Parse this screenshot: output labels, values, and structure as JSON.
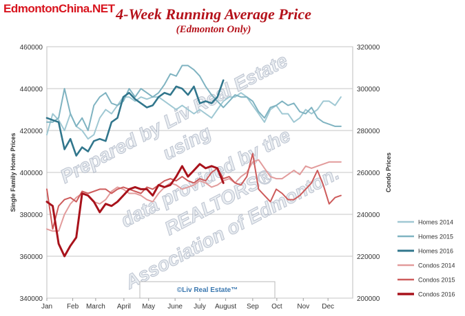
{
  "header": {
    "brand": "EdmontonChina.NET",
    "title": "4-Week Running Average Price",
    "subtitle": "(Edmonton Only)"
  },
  "chart_data": {
    "type": "line",
    "title": "4-Week Running Average Price",
    "subtitle": "(Edmonton Only)",
    "ylabel": "Single Family Home Prices",
    "y2label": "Condo Prices",
    "ylim": [
      340000,
      460000
    ],
    "y2lim": [
      200000,
      320000
    ],
    "yticks": [
      "340000",
      "360000",
      "380000",
      "400000",
      "420000",
      "440000",
      "460000"
    ],
    "y2ticks": [
      "200000",
      "220000",
      "240000",
      "260000",
      "280000",
      "300000",
      "320000"
    ],
    "xlim": [
      0,
      52
    ],
    "xticks": [
      {
        "label": "Jan",
        "week": 0
      },
      {
        "label": "Feb",
        "week": 4.4
      },
      {
        "label": "March",
        "week": 8.3
      },
      {
        "label": "April",
        "week": 13.1
      },
      {
        "label": "May",
        "week": 17.3
      },
      {
        "label": "June",
        "week": 21.8
      },
      {
        "label": "July",
        "week": 26.0
      },
      {
        "label": "August",
        "week": 30.4
      },
      {
        "label": "Sep",
        "week": 35.0
      },
      {
        "label": "Oct",
        "week": 39.1
      },
      {
        "label": "Nov",
        "week": 43.6
      },
      {
        "label": "Dec",
        "week": 47.8
      }
    ],
    "grid": true,
    "legend": "right",
    "watermark": [
      "Prepared by Liv Real Estate",
      "using",
      "data provided by the",
      "REALTORS®",
      "Association of Edmonton."
    ],
    "credit": "©Liv Real Estate™",
    "series": [
      {
        "name": "Homes 2014",
        "axis": "left",
        "color": "#9fc8d3",
        "width": 2,
        "values": [
          418000,
          428000,
          425000,
          420000,
          428000,
          422000,
          420000,
          416000,
          418000,
          426000,
          430000,
          428000,
          432000,
          436000,
          436000,
          434000,
          436000,
          435000,
          436000,
          436000,
          434000,
          432000,
          430000,
          432000,
          430000,
          428000,
          430000,
          428000,
          426000,
          430000,
          434000,
          436000,
          436000,
          438000,
          436000,
          432000,
          428000,
          424000,
          430000,
          432000,
          428000,
          428000,
          424000,
          426000,
          430000,
          428000,
          430000,
          434000,
          434000,
          432000,
          436000
        ]
      },
      {
        "name": "Homes 2015",
        "axis": "left",
        "color": "#7fb3c1",
        "width": 2,
        "values": [
          424000,
          424000,
          426000,
          440000,
          428000,
          422000,
          426000,
          420000,
          432000,
          436000,
          438000,
          433000,
          432000,
          434000,
          440000,
          436000,
          440000,
          438000,
          436000,
          438000,
          442000,
          447000,
          446000,
          451000,
          451000,
          449000,
          446000,
          441000,
          437000,
          434000,
          431000,
          434000,
          437000,
          436000,
          436000,
          434000,
          429000,
          426000,
          431000,
          432000,
          434000,
          432000,
          433000,
          429000,
          428000,
          431000,
          426000,
          424000,
          423000,
          422000,
          422000
        ]
      },
      {
        "name": "Homes 2016",
        "axis": "left",
        "color": "#31768c",
        "width": 2.6,
        "values": [
          426000,
          425000,
          424000,
          411000,
          416000,
          408000,
          412000,
          410000,
          415000,
          416000,
          415000,
          424000,
          426000,
          436000,
          438000,
          435000,
          433000,
          431000,
          432000,
          436000,
          438000,
          437000,
          441000,
          440000,
          437000,
          441000,
          433000,
          434000,
          433000,
          436000,
          444000
        ]
      },
      {
        "name": "Condos 2014",
        "axis": "right",
        "color": "#e29b9b",
        "width": 2,
        "values": [
          233000,
          232000,
          232000,
          240000,
          245000,
          248000,
          250000,
          249000,
          246000,
          245000,
          247000,
          251000,
          253000,
          252000,
          250000,
          250000,
          249000,
          247000,
          246000,
          250000,
          253000,
          255000,
          254000,
          252000,
          253000,
          254000,
          256000,
          255000,
          253000,
          254000,
          256000,
          257000,
          255000,
          258000,
          260000,
          265000,
          266000,
          262000,
          258000,
          257000,
          257000,
          259000,
          261000,
          259000,
          263000,
          262000,
          263000,
          264000,
          265000,
          265000,
          265000
        ]
      },
      {
        "name": "Condos 2015",
        "axis": "right",
        "color": "#cd5b5b",
        "width": 2,
        "values": [
          252000,
          233000,
          244000,
          247000,
          248000,
          246000,
          251000,
          250000,
          251000,
          252000,
          252000,
          250000,
          252000,
          253000,
          252000,
          251000,
          250000,
          253000,
          252000,
          254000,
          256000,
          257000,
          256000,
          258000,
          256000,
          255000,
          257000,
          256000,
          260000,
          262000,
          257000,
          258000,
          255000,
          254000,
          258000,
          269000,
          252000,
          249000,
          246000,
          252000,
          250000,
          247000,
          247000,
          249000,
          252000,
          255000,
          261000,
          254000,
          245000,
          248000,
          249000
        ]
      },
      {
        "name": "Condos 2016",
        "axis": "right",
        "color": "#a8121b",
        "width": 3,
        "values": [
          246000,
          244000,
          226000,
          220000,
          225000,
          229000,
          250000,
          249000,
          246000,
          241000,
          245000,
          244000,
          246000,
          249000,
          252000,
          253000,
          252000,
          252000,
          249000,
          254000,
          253000,
          254000,
          258000,
          263000,
          258000,
          261000,
          264000,
          262000,
          263000,
          262000,
          255000
        ]
      }
    ]
  }
}
